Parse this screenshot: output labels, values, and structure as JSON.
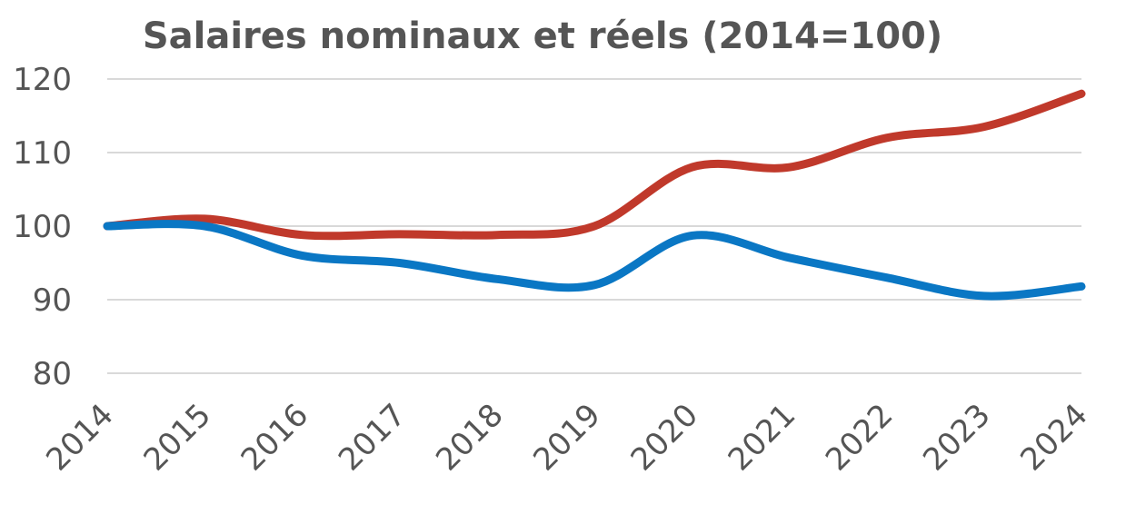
{
  "chart_data": {
    "type": "line",
    "title": "Salaires nominaux et réels (2014=100)",
    "xlabel": "",
    "ylabel": "",
    "x": [
      "2014",
      "2015",
      "2016",
      "2017",
      "2018",
      "2019",
      "2020",
      "2021",
      "2022",
      "2023",
      "2024"
    ],
    "yticks": [
      "120",
      "110",
      "100",
      "90",
      "80"
    ],
    "ylim": [
      80,
      120
    ],
    "grid": true,
    "legend": "none",
    "smooth": true,
    "series": [
      {
        "color": "#c0392b",
        "values": [
          100,
          101,
          98.8,
          98.9,
          98.8,
          100,
          108,
          108,
          112,
          113.5,
          118
        ]
      },
      {
        "color": "#0a77c4",
        "values": [
          100,
          100,
          96,
          95,
          92.8,
          92,
          98.7,
          95.7,
          93,
          90.5,
          91.8
        ]
      }
    ]
  }
}
